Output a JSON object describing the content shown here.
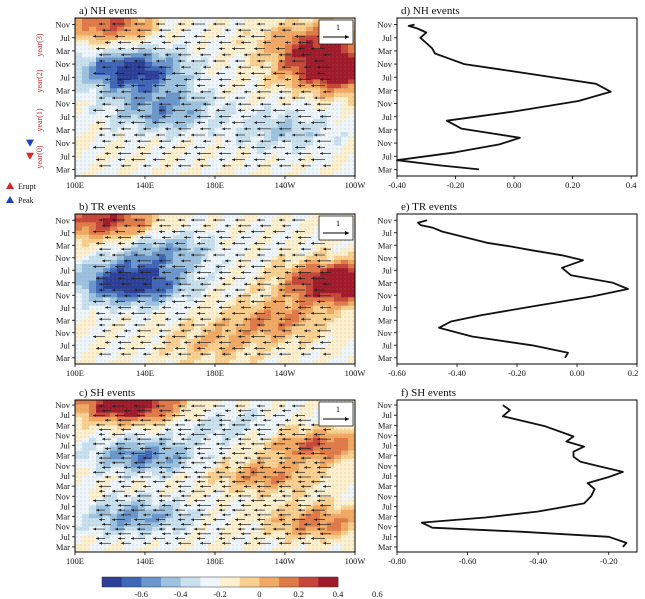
{
  "figure": {
    "legend_markers": [
      {
        "label": "Erupt",
        "color": "#d62728",
        "icon": "triangle-up-icon"
      },
      {
        "label": "Peak",
        "color": "#1f3fbf",
        "icon": "triangle-up-icon"
      }
    ],
    "year_labels": [
      "year(3)",
      "year(2)",
      "year(1)",
      "year(0)"
    ],
    "year_label_color": "#c0282d",
    "reference_vector_label": "1",
    "colorbar": {
      "ticks": [
        "-0.6",
        "-0.4",
        "-0.2",
        "0",
        "0.2",
        "0.4",
        "0.6"
      ],
      "colors": [
        "#2b3f99",
        "#3f66b8",
        "#6b97cd",
        "#9cc2e0",
        "#c9e0ef",
        "#eef6fb",
        "#fdf0cf",
        "#f9d08f",
        "#f2a964",
        "#e07a49",
        "#c6463a",
        "#a11a2b"
      ]
    }
  },
  "chart_data": [
    {
      "type": "heatmap",
      "panel": "a",
      "title": "a)   NH events",
      "xticks": [
        "100E",
        "140E",
        "180E",
        "140W",
        "100W"
      ],
      "yticks": [
        "Nov",
        "Jul",
        "Mar",
        "Nov",
        "Jul",
        "Mar",
        "Nov",
        "Jul",
        "Mar",
        "Nov",
        "Jul",
        "Mar"
      ],
      "markers": [
        {
          "kind": "peak",
          "row": 9,
          "color": "#1f3fbf"
        },
        {
          "kind": "erupt",
          "row": 10,
          "color": "#d62728"
        }
      ],
      "blobs": [
        {
          "lon": 125,
          "row": 11,
          "amp": 0.55
        },
        {
          "lon": 132,
          "row": 7.5,
          "amp": -0.6
        },
        {
          "lon": 250,
          "row": 7.5,
          "amp": 0.65
        },
        {
          "lon": 235,
          "row": 9.5,
          "amp": 0.4
        },
        {
          "lon": 150,
          "row": 4.5,
          "amp": -0.35
        },
        {
          "lon": 220,
          "row": 3,
          "amp": -0.2
        },
        {
          "lon": 140,
          "row": 10.8,
          "amp": -0.2
        }
      ]
    },
    {
      "type": "heatmap",
      "panel": "b",
      "title": "b)   TR events",
      "xticks": [
        "100E",
        "140E",
        "180E",
        "140W",
        "100W"
      ],
      "yticks": [
        "Nov",
        "Jul",
        "Mar",
        "Nov",
        "Jul",
        "Mar",
        "Nov",
        "Jul",
        "Mar",
        "Nov",
        "Jul",
        "Mar"
      ],
      "markers": [],
      "blobs": [
        {
          "lon": 118,
          "row": 11,
          "amp": 0.5
        },
        {
          "lon": 132,
          "row": 6,
          "amp": -0.65
        },
        {
          "lon": 250,
          "row": 6,
          "amp": 0.75
        },
        {
          "lon": 215,
          "row": 3,
          "amp": 0.3
        },
        {
          "lon": 150,
          "row": 8.5,
          "amp": -0.3
        },
        {
          "lon": 180,
          "row": 1.2,
          "amp": 0.2
        }
      ]
    },
    {
      "type": "heatmap",
      "panel": "c",
      "title": "c)   SH events",
      "xticks": [
        "100E",
        "140E",
        "180E",
        "140W",
        "100W"
      ],
      "yticks": [
        "Nov",
        "Jul",
        "Mar",
        "Nov",
        "Jul",
        "Mar",
        "Nov",
        "Jul",
        "Mar",
        "Nov",
        "Jul",
        "Mar",
        "Nov",
        "Jul",
        "Mar"
      ],
      "markers": [],
      "blobs": [
        {
          "lon": 130,
          "row": 14,
          "amp": 0.7
        },
        {
          "lon": 140,
          "row": 9,
          "amp": -0.4
        },
        {
          "lon": 135,
          "row": 3,
          "amp": -0.35
        },
        {
          "lon": 240,
          "row": 10,
          "amp": 0.4
        },
        {
          "lon": 210,
          "row": 7,
          "amp": 0.3
        },
        {
          "lon": 240,
          "row": 2.5,
          "amp": 0.35
        },
        {
          "lon": 185,
          "row": 12,
          "amp": -0.15
        }
      ]
    },
    {
      "type": "line",
      "panel": "d",
      "title": "d)   NH events",
      "xticks": [
        "-0.40",
        "-0.20",
        "0.00",
        "0.20",
        "0.4"
      ],
      "xlim": [
        -0.4,
        0.42
      ],
      "yticks": [
        "Nov",
        "Jul",
        "Mar",
        "Nov",
        "Jul",
        "Mar",
        "Nov",
        "Jul",
        "Mar",
        "Nov",
        "Jul",
        "Mar"
      ],
      "ylim": [
        0,
        11
      ],
      "x": [
        -0.12,
        -0.25,
        -0.4,
        -0.2,
        -0.05,
        0.02,
        -0.18,
        -0.23,
        0.0,
        0.22,
        0.33,
        0.28,
        0.1,
        -0.05,
        -0.17,
        -0.22,
        -0.27,
        -0.28,
        -0.3,
        -0.32,
        -0.3,
        -0.33,
        -0.36,
        -0.34
      ],
      "y": [
        0,
        0.3,
        0.7,
        1.3,
        1.9,
        2.4,
        3.1,
        3.7,
        4.4,
        5.2,
        5.9,
        6.5,
        7.1,
        7.6,
        8.0,
        8.4,
        8.8,
        9.2,
        9.6,
        10.0,
        10.4,
        10.7,
        10.9,
        11
      ]
    },
    {
      "type": "line",
      "panel": "e",
      "title": "e)   TR events",
      "xticks": [
        "-0.60",
        "-0.40",
        "-0.20",
        "0.00",
        "0.2"
      ],
      "xlim": [
        -0.6,
        0.2
      ],
      "yticks": [
        "Nov",
        "Jul",
        "Mar",
        "Nov",
        "Jul",
        "Mar",
        "Nov",
        "Jul",
        "Mar",
        "Nov",
        "Jul",
        "Mar"
      ],
      "ylim": [
        0,
        11
      ],
      "x": [
        -0.04,
        -0.03,
        -0.15,
        -0.35,
        -0.46,
        -0.42,
        -0.32,
        -0.15,
        0.05,
        0.17,
        0.12,
        -0.02,
        -0.05,
        0.02,
        -0.05,
        -0.15,
        -0.22,
        -0.3,
        -0.35,
        -0.4,
        -0.45,
        -0.48,
        -0.52,
        -0.53,
        -0.5
      ],
      "y": [
        0,
        0.4,
        1.0,
        1.7,
        2.4,
        2.9,
        3.4,
        4.1,
        4.9,
        5.5,
        6.0,
        6.6,
        7.2,
        7.8,
        8.2,
        8.6,
        8.9,
        9.2,
        9.5,
        9.8,
        10.1,
        10.4,
        10.6,
        10.8,
        11
      ]
    },
    {
      "type": "line",
      "panel": "f",
      "title": "f)   SH events",
      "xticks": [
        "-0.80",
        "-0.60",
        "-0.40",
        "-0.20"
      ],
      "xlim": [
        -0.8,
        -0.12
      ],
      "yticks": [
        "Nov",
        "Jul",
        "Mar",
        "Nov",
        "Jul",
        "Mar",
        "Nov",
        "Jul",
        "Mar",
        "Nov",
        "Jul",
        "Mar",
        "Nov",
        "Jul",
        "Mar"
      ],
      "ylim": [
        0,
        14
      ],
      "x": [
        -0.16,
        -0.15,
        -0.2,
        -0.45,
        -0.7,
        -0.73,
        -0.55,
        -0.4,
        -0.27,
        -0.25,
        -0.24,
        -0.26,
        -0.2,
        -0.16,
        -0.22,
        -0.28,
        -0.3,
        -0.3,
        -0.27,
        -0.32,
        -0.3,
        -0.34,
        -0.38,
        -0.44,
        -0.5,
        -0.48,
        -0.5
      ],
      "y": [
        0,
        0.4,
        1.0,
        1.5,
        1.9,
        2.4,
        2.9,
        3.5,
        4.3,
        5.0,
        5.7,
        6.3,
        6.9,
        7.4,
        7.9,
        8.4,
        8.9,
        9.4,
        9.9,
        10.4,
        10.9,
        11.4,
        11.9,
        12.4,
        12.9,
        13.5,
        14
      ]
    }
  ]
}
